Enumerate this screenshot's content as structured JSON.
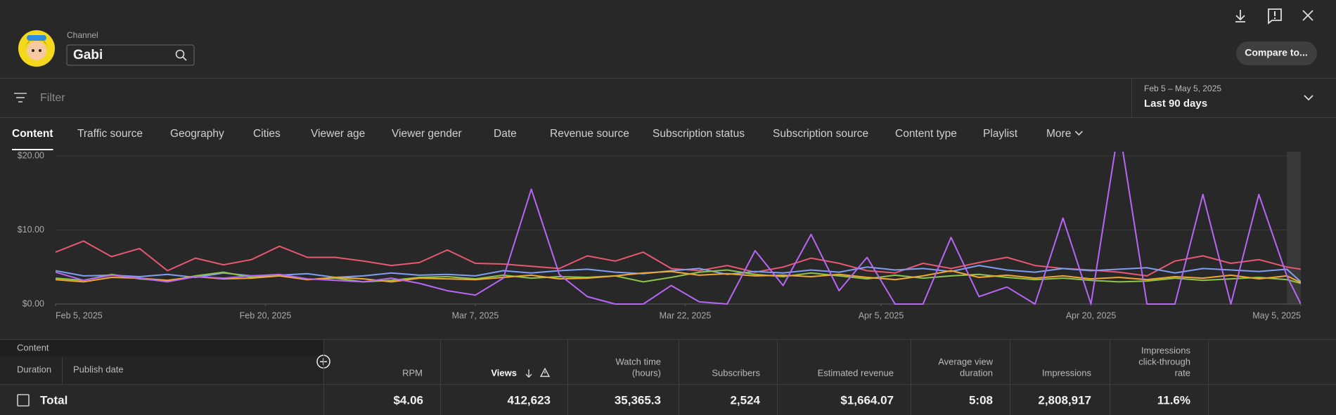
{
  "header": {
    "channel_label": "Channel",
    "channel_name": "Gabi",
    "compare_button": "Compare to..."
  },
  "filter": {
    "placeholder": "Filter",
    "date_range": "Feb 5 – May 5, 2025",
    "period": "Last 90 days"
  },
  "tabs": [
    "Content",
    "Traffic source",
    "Geography",
    "Cities",
    "Viewer age",
    "Viewer gender",
    "Date",
    "Revenue source",
    "Subscription status",
    "Subscription source",
    "Content type",
    "Playlist",
    "More"
  ],
  "chart_data": {
    "type": "line",
    "x": [
      "2025-02-05",
      "2025-02-07",
      "2025-02-09",
      "2025-02-11",
      "2025-02-13",
      "2025-02-15",
      "2025-02-17",
      "2025-02-19",
      "2025-02-21",
      "2025-02-23",
      "2025-02-25",
      "2025-02-27",
      "2025-03-01",
      "2025-03-03",
      "2025-03-05",
      "2025-03-07",
      "2025-03-09",
      "2025-03-11",
      "2025-03-13",
      "2025-03-15",
      "2025-03-17",
      "2025-03-19",
      "2025-03-21",
      "2025-03-23",
      "2025-03-25",
      "2025-03-27",
      "2025-03-29",
      "2025-03-31",
      "2025-04-02",
      "2025-04-04",
      "2025-04-06",
      "2025-04-08",
      "2025-04-10",
      "2025-04-12",
      "2025-04-14",
      "2025-04-16",
      "2025-04-18",
      "2025-04-20",
      "2025-04-22",
      "2025-04-24",
      "2025-04-26",
      "2025-04-28",
      "2025-04-30",
      "2025-05-02",
      "2025-05-04",
      "2025-05-05"
    ],
    "series": [
      {
        "color": "#e8586f",
        "values": [
          7.0,
          8.5,
          6.4,
          7.5,
          4.5,
          6.2,
          5.3,
          6.0,
          7.8,
          6.3,
          6.3,
          5.8,
          5.2,
          5.6,
          7.3,
          5.5,
          5.4,
          5.1,
          4.8,
          6.5,
          5.8,
          7.0,
          4.8,
          4.5,
          5.2,
          4.3,
          5.0,
          6.2,
          5.5,
          4.5,
          4.2,
          5.5,
          4.8,
          5.6,
          6.3,
          5.2,
          4.8,
          4.6,
          4.3,
          3.8,
          5.8,
          6.5,
          5.5,
          6.0,
          5.0,
          4.7
        ]
      },
      {
        "color": "#7f9ff2",
        "values": [
          4.5,
          3.8,
          3.9,
          3.7,
          4.0,
          3.6,
          4.2,
          3.8,
          3.9,
          4.1,
          3.6,
          3.8,
          4.2,
          3.9,
          4.0,
          3.8,
          4.5,
          4.2,
          4.5,
          4.7,
          4.3,
          4.1,
          4.5,
          4.8,
          4.0,
          4.4,
          4.2,
          4.6,
          4.3,
          5.0,
          4.6,
          4.8,
          4.4,
          5.2,
          4.6,
          4.3,
          4.8,
          4.5,
          4.7,
          4.9,
          4.2,
          4.8,
          4.6,
          4.4,
          4.7,
          3.0
        ]
      },
      {
        "color": "#8cc44c",
        "values": [
          3.5,
          3.2,
          4.0,
          3.4,
          3.1,
          3.8,
          4.3,
          3.6,
          3.9,
          3.3,
          3.5,
          3.0,
          3.2,
          3.6,
          3.7,
          3.4,
          3.9,
          3.5,
          3.7,
          3.6,
          3.8,
          3.0,
          3.6,
          4.3,
          4.6,
          4.0,
          3.7,
          4.2,
          3.8,
          3.4,
          3.9,
          3.5,
          3.8,
          4.0,
          3.6,
          3.3,
          3.5,
          3.2,
          3.0,
          3.1,
          3.5,
          3.2,
          3.4,
          3.6,
          3.3,
          2.8
        ]
      },
      {
        "color": "#f0a830",
        "values": [
          3.3,
          3.0,
          3.6,
          3.5,
          3.2,
          3.7,
          3.4,
          3.5,
          3.8,
          3.3,
          3.6,
          3.4,
          3.0,
          3.5,
          3.4,
          3.3,
          3.6,
          3.9,
          3.4,
          3.5,
          3.8,
          4.2,
          4.4,
          3.9,
          4.1,
          3.8,
          3.9,
          3.7,
          4.0,
          3.6,
          3.3,
          3.8,
          4.5,
          3.6,
          3.9,
          3.5,
          3.8,
          3.4,
          3.6,
          3.3,
          3.7,
          3.5,
          3.9,
          3.4,
          3.8,
          2.9
        ]
      },
      {
        "color": "#b866f5",
        "values": [
          4.3,
          3.2,
          3.9,
          3.5,
          3.0,
          3.7,
          3.5,
          3.8,
          4.0,
          3.4,
          3.2,
          3.0,
          3.5,
          2.8,
          1.8,
          1.2,
          3.5,
          15.5,
          4.0,
          1.0,
          0.0,
          0.0,
          2.5,
          0.3,
          0.0,
          7.2,
          2.5,
          9.4,
          1.8,
          6.3,
          0.0,
          0.0,
          9.0,
          1.0,
          2.3,
          0.0,
          11.6,
          0.0,
          24.0,
          0.0,
          0.0,
          14.8,
          0.0,
          14.8,
          3.8,
          0.0
        ]
      }
    ],
    "xlim": [
      "2025-02-05",
      "2025-05-05"
    ],
    "xticks": [
      {
        "value": "2025-02-05",
        "label": "Feb 5, 2025"
      },
      {
        "value": "2025-02-20",
        "label": "Feb 20, 2025"
      },
      {
        "value": "2025-03-07",
        "label": "Mar 7, 2025"
      },
      {
        "value": "2025-03-22",
        "label": "Mar 22, 2025"
      },
      {
        "value": "2025-04-05",
        "label": "Apr 5, 2025"
      },
      {
        "value": "2025-04-20",
        "label": "Apr 20, 2025"
      },
      {
        "value": "2025-05-05",
        "label": "May 5, 2025"
      }
    ],
    "ylim": [
      0,
      20
    ],
    "yticks": [
      {
        "value": 0,
        "label": "$0.00"
      },
      {
        "value": 10,
        "label": "$10.00"
      },
      {
        "value": 20,
        "label": "$20.00"
      }
    ],
    "grid": true
  },
  "table": {
    "left_headers": [
      "Content",
      "Duration",
      "Publish date"
    ],
    "columns": [
      [
        "RPM"
      ],
      [
        "Views"
      ],
      [
        "Watch time",
        "(hours)"
      ],
      [
        "Subscribers"
      ],
      [
        "Estimated revenue"
      ],
      [
        "Average view",
        "duration"
      ],
      [
        "Impressions"
      ],
      [
        "Impressions",
        "click-through",
        "rate"
      ]
    ],
    "total_label": "Total",
    "total_values": [
      "$4.06",
      "412,623",
      "35,365.3",
      "2,524",
      "$1,664.07",
      "5:08",
      "2,808,917",
      "11.6%"
    ]
  }
}
